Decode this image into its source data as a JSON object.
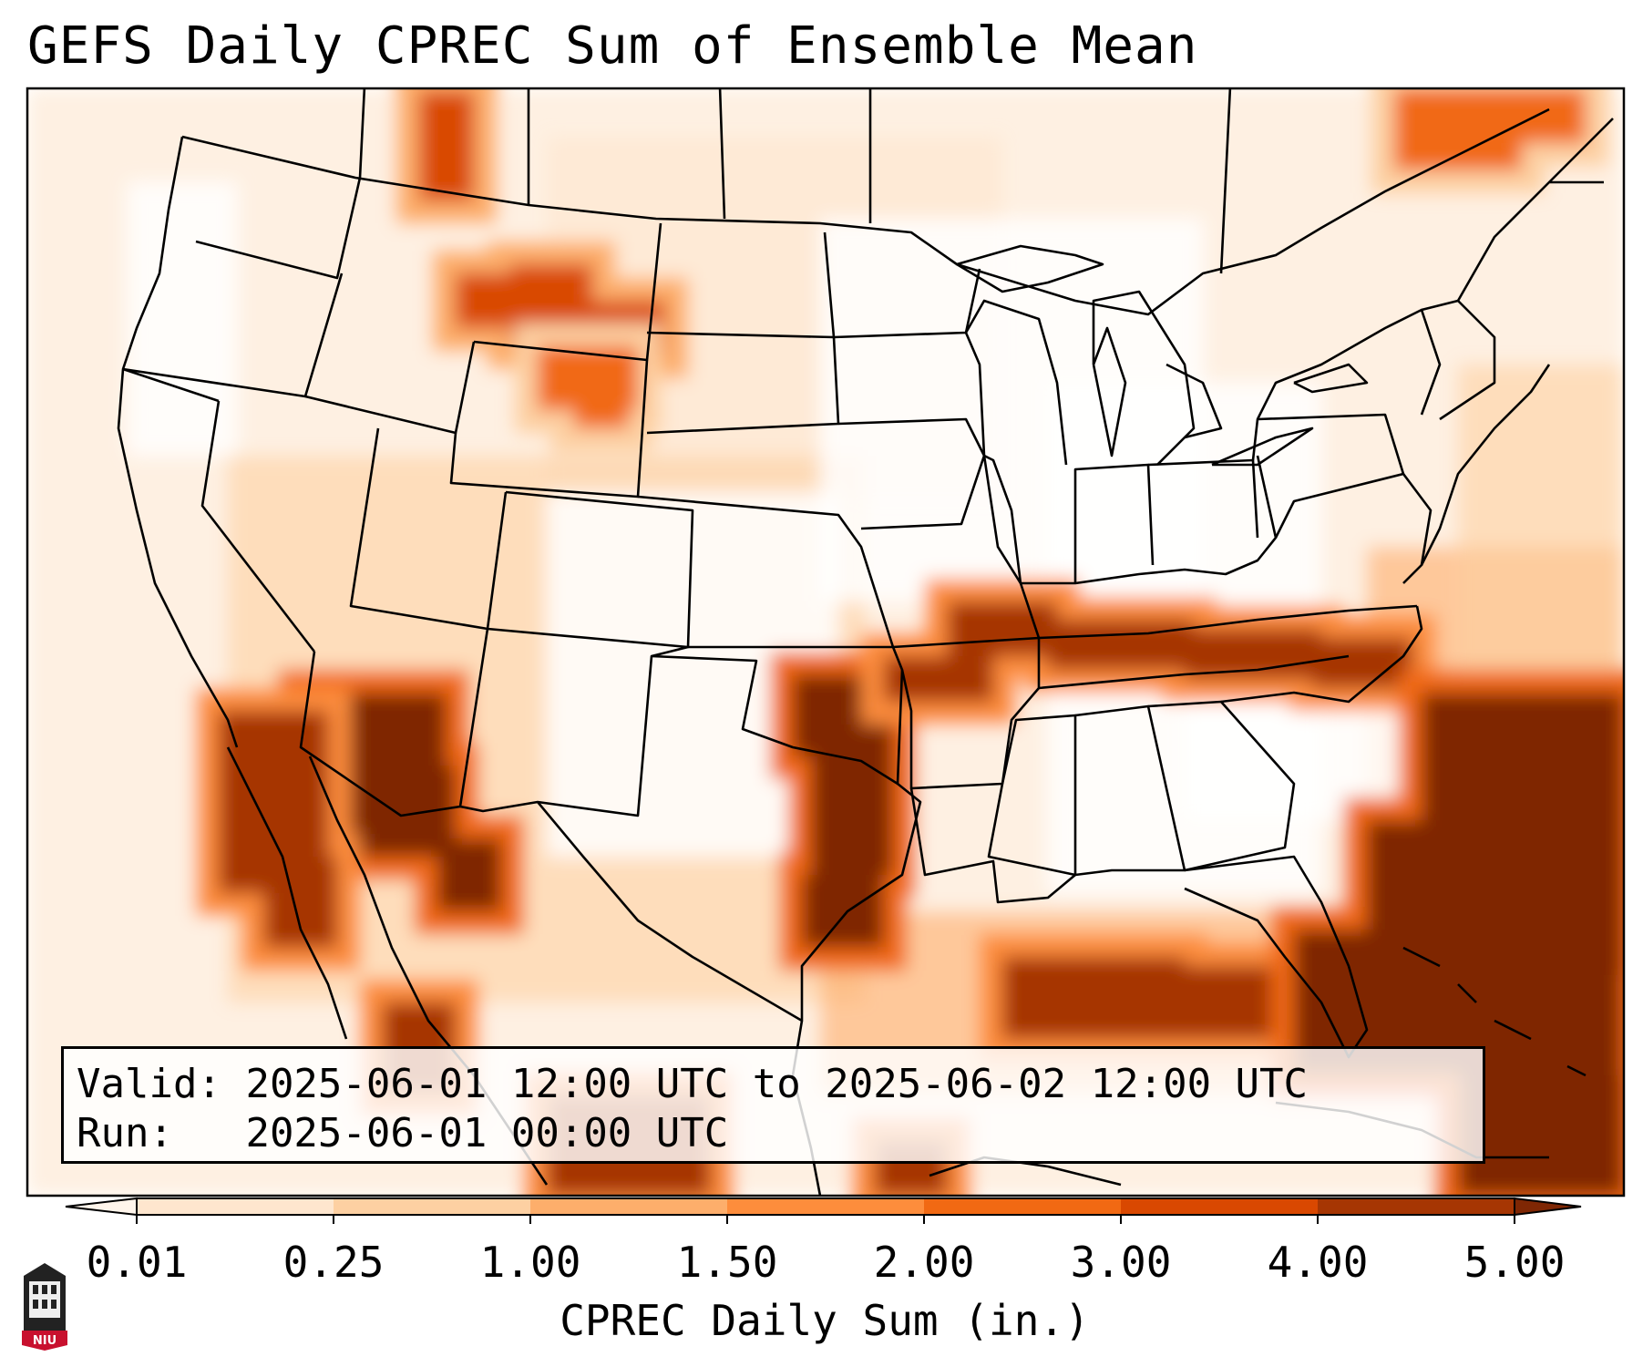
{
  "title": "GEFS Daily CPREC Sum of Ensemble Mean",
  "info": {
    "valid_label": "Valid:",
    "valid_value": "2025-06-01 12:00 UTC to 2025-06-02 12:00 UTC",
    "run_label": "Run:",
    "run_value": "2025-06-01 00:00 UTC"
  },
  "colorbar": {
    "label": "CPREC Daily Sum (in.)",
    "ticks": [
      "0.01",
      "0.25",
      "1.00",
      "1.50",
      "2.00",
      "3.00",
      "4.00",
      "5.00"
    ],
    "colors": [
      "#fff5eb",
      "#fee6ce",
      "#fdd0a2",
      "#fdae6b",
      "#fd8d3c",
      "#f16913",
      "#d94801",
      "#a63603",
      "#7f2704"
    ]
  },
  "logo": {
    "text": "NIU",
    "icon": "university-tower-icon"
  },
  "map": {
    "projection": "conus-lambert",
    "features": [
      "coastlines",
      "state-borders",
      "country-borders"
    ],
    "precip_regions": [
      {
        "name": "northern-rockies-montana",
        "level": 6
      },
      {
        "name": "wyoming-north",
        "level": 5
      },
      {
        "name": "arizona-southwest",
        "level": 8
      },
      {
        "name": "baja-california-sonora",
        "level": 7
      },
      {
        "name": "oklahoma-texas-red-river",
        "level": 8
      },
      {
        "name": "missouri-tennessee-north-carolina-band",
        "level": 7
      },
      {
        "name": "gulf-of-mexico",
        "level": 7
      },
      {
        "name": "florida-atlantic-bahamas",
        "level": 8
      },
      {
        "name": "southeast-canada",
        "level": 5
      }
    ]
  }
}
